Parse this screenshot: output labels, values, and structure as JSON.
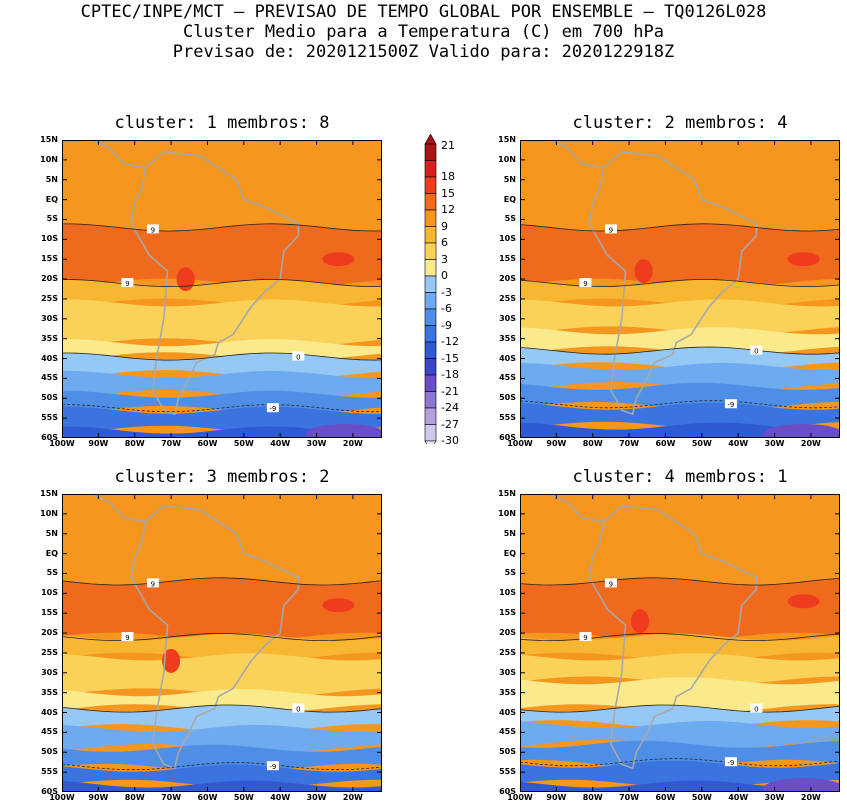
{
  "header": {
    "line1": "CPTEC/INPE/MCT – PREVISAO DE TEMPO GLOBAL POR ENSEMBLE – TQ0126L028",
    "line2": "Cluster Medio para a Temperatura (C) em 700 hPa",
    "line3": "Previsao de: 2020121500Z   Valido para: 2020122918Z"
  },
  "panels": [
    {
      "title": "cluster: 1  membros: 8"
    },
    {
      "title": "cluster: 2  membros: 4"
    },
    {
      "title": "cluster: 3  membros: 2"
    },
    {
      "title": "cluster: 4  membros: 1"
    }
  ],
  "axes": {
    "lat_labels": [
      "15N",
      "10N",
      "5N",
      "EQ",
      "5S",
      "10S",
      "15S",
      "20S",
      "25S",
      "30S",
      "35S",
      "40S",
      "45S",
      "50S",
      "55S",
      "60S"
    ],
    "lon_labels": [
      "100W",
      "90W",
      "80W",
      "70W",
      "60W",
      "50W",
      "40W",
      "30W",
      "20W"
    ]
  },
  "contour_labels": {
    "warm": "9",
    "cool": "0",
    "cold": "-9"
  },
  "colorbar": {
    "levels": [
      "21",
      "18",
      "15",
      "12",
      "9",
      "6",
      "3",
      "0",
      "-3",
      "-6",
      "-9",
      "-12",
      "-15",
      "-18",
      "-21",
      "-24",
      "-27",
      "-30"
    ],
    "colors": [
      "#a61414",
      "#d81e1e",
      "#f03c1e",
      "#f06a1e",
      "#f5961e",
      "#f7b733",
      "#fad25a",
      "#faea8c",
      "#96c8f5",
      "#6eaaf0",
      "#4e8ee6",
      "#3a74de",
      "#2f5ad2",
      "#3a46c8",
      "#6a4ec8",
      "#8c78d2",
      "#b4a0e0",
      "#d2c8ee"
    ]
  },
  "map_colors": {
    "ocean_deep": "#f5961e",
    "warm": "#f06a1e",
    "hot": "#f03c1e",
    "mild": "#f7b733",
    "cool": "#fad25a",
    "pale": "#faea8c",
    "blue1": "#96c8f5",
    "blue2": "#6eaaf0",
    "blue3": "#4e8ee6",
    "blue4": "#3a74de",
    "blue5": "#2f5ad2",
    "violet": "#6a4ec8",
    "coast": "#a8a8a8"
  }
}
